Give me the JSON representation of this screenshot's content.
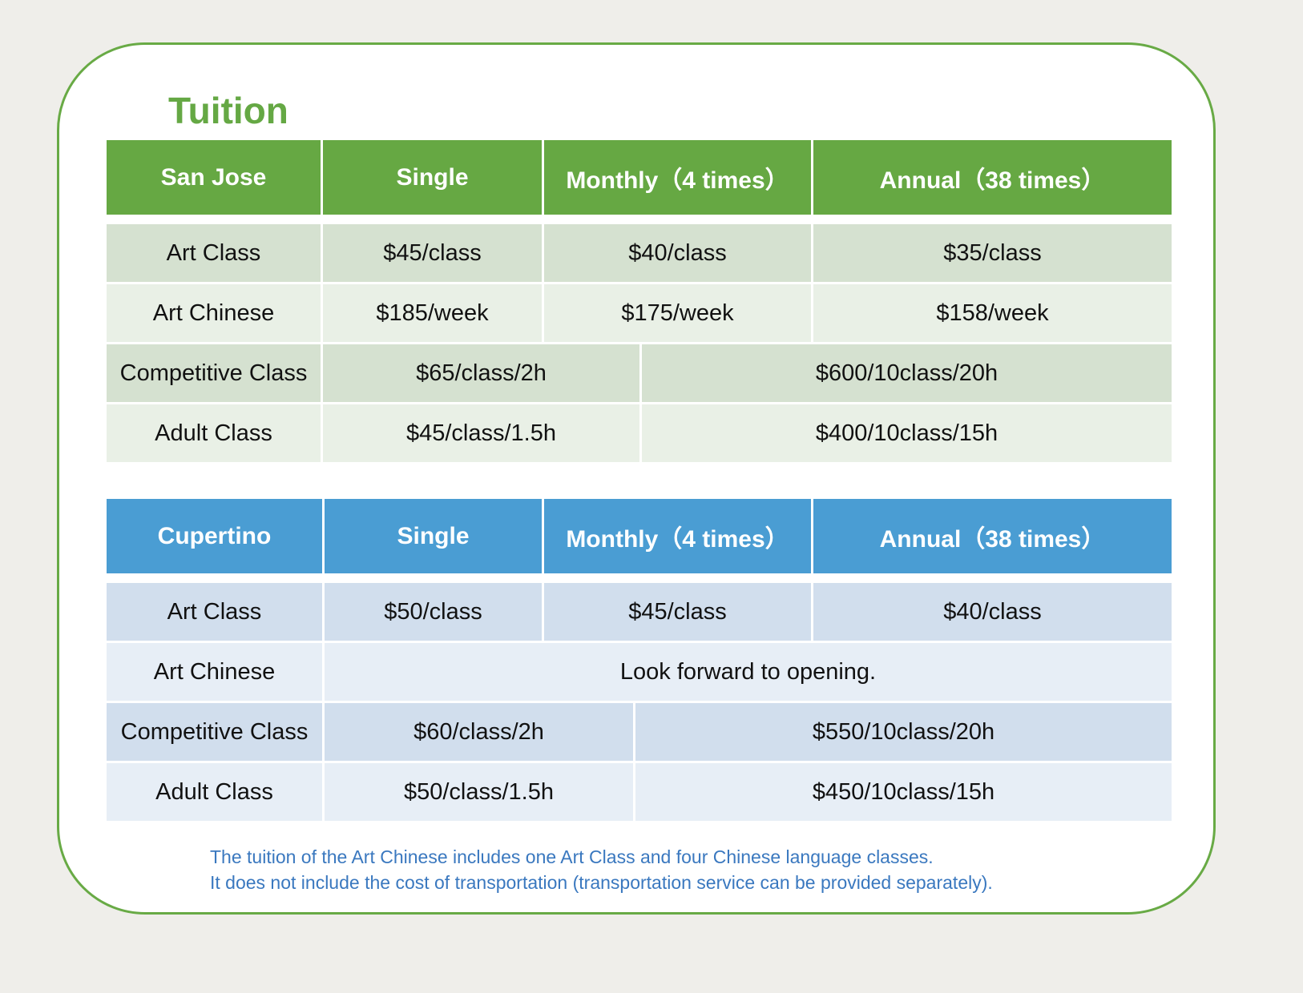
{
  "title": "Tuition",
  "colors": {
    "green_accent": "#66a843",
    "blue_accent": "#4a9dd3",
    "note_text": "#3a78bf"
  },
  "san_jose": {
    "header": [
      "San Jose",
      "Single",
      "Monthly（4 times）",
      "Annual（38 times）"
    ],
    "rows": {
      "art_class": {
        "label": "Art Class",
        "single": "$45/class",
        "monthly": "$40/class",
        "annual": "$35/class"
      },
      "art_chinese": {
        "label": "Art Chinese",
        "single": "$185/week",
        "monthly": "$175/week",
        "annual": "$158/week"
      },
      "competitive": {
        "label": "Competitive Class",
        "single": "$65/class/2h",
        "package": "$600/10class/20h"
      },
      "adult": {
        "label": "Adult Class",
        "single": "$45/class/1.5h",
        "package": "$400/10class/15h"
      }
    }
  },
  "cupertino": {
    "header": [
      "Cupertino",
      "Single",
      "Monthly（4 times）",
      "Annual（38 times）"
    ],
    "rows": {
      "art_class": {
        "label": "Art Class",
        "single": "$50/class",
        "monthly": "$45/class",
        "annual": "$40/class"
      },
      "art_chinese": {
        "label": "Art Chinese",
        "message": "Look forward to opening."
      },
      "competitive": {
        "label": "Competitive Class",
        "single": "$60/class/2h",
        "package": "$550/10class/20h"
      },
      "adult": {
        "label": "Adult Class",
        "single": "$50/class/1.5h",
        "package": "$450/10class/15h"
      }
    }
  },
  "notes": [
    "The tuition of the Art Chinese includes one Art Class and four Chinese language classes.",
    "It does not include the cost of transportation (transportation service can be provided separately)."
  ]
}
